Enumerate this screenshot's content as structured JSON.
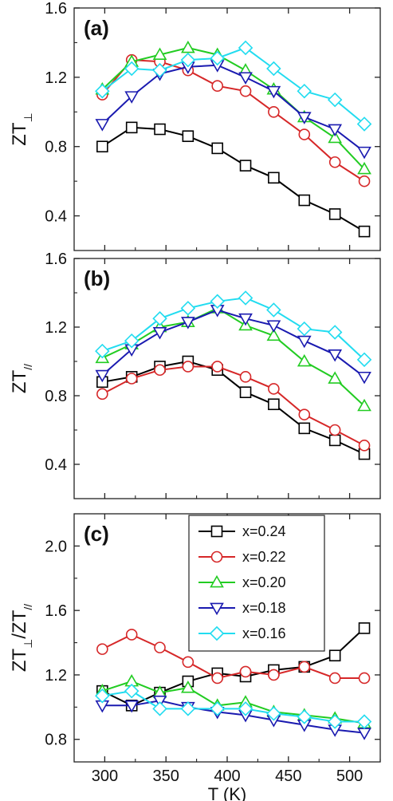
{
  "chart_data": [
    {
      "type": "line",
      "panel_label": "(a)",
      "ylabel": "ZT",
      "ylabel_sub": "⊥",
      "ylim": [
        0.2,
        1.6
      ],
      "yticks": [
        0.4,
        0.8,
        1.2,
        1.6
      ],
      "xlim": [
        275,
        525
      ],
      "xticks": [
        300,
        350,
        400,
        450,
        500
      ],
      "grid": false,
      "series": [
        {
          "name": "x=0.24",
          "color": "#000000",
          "marker": "square",
          "points": [
            [
              298,
              0.8
            ],
            [
              322,
              0.91
            ],
            [
              345,
              0.9
            ],
            [
              368,
              0.86
            ],
            [
              392,
              0.79
            ],
            [
              415,
              0.69
            ],
            [
              438,
              0.62
            ],
            [
              463,
              0.49
            ],
            [
              488,
              0.41
            ],
            [
              512,
              0.31
            ]
          ]
        },
        {
          "name": "x=0.22",
          "color": "#d62728",
          "marker": "circle",
          "points": [
            [
              298,
              1.1
            ],
            [
              322,
              1.3
            ],
            [
              345,
              1.29
            ],
            [
              368,
              1.24
            ],
            [
              392,
              1.15
            ],
            [
              415,
              1.12
            ],
            [
              438,
              1.0
            ],
            [
              463,
              0.87
            ],
            [
              488,
              0.71
            ],
            [
              512,
              0.6
            ]
          ]
        },
        {
          "name": "x=0.20",
          "color": "#22cc22",
          "marker": "triangle-up",
          "points": [
            [
              298,
              1.13
            ],
            [
              322,
              1.29
            ],
            [
              345,
              1.33
            ],
            [
              368,
              1.37
            ],
            [
              392,
              1.33
            ],
            [
              415,
              1.24
            ],
            [
              438,
              1.13
            ],
            [
              463,
              0.97
            ],
            [
              488,
              0.85
            ],
            [
              512,
              0.67
            ]
          ]
        },
        {
          "name": "x=0.18",
          "color": "#1a1ab0",
          "marker": "triangle-down",
          "points": [
            [
              298,
              0.93
            ],
            [
              322,
              1.09
            ],
            [
              345,
              1.22
            ],
            [
              368,
              1.26
            ],
            [
              392,
              1.27
            ],
            [
              415,
              1.2
            ],
            [
              438,
              1.12
            ],
            [
              463,
              0.97
            ],
            [
              488,
              0.9
            ],
            [
              512,
              0.77
            ]
          ]
        },
        {
          "name": "x=0.16",
          "color": "#22dcf0",
          "marker": "diamond",
          "points": [
            [
              298,
              1.12
            ],
            [
              322,
              1.25
            ],
            [
              345,
              1.24
            ],
            [
              368,
              1.3
            ],
            [
              392,
              1.31
            ],
            [
              415,
              1.37
            ],
            [
              438,
              1.25
            ],
            [
              463,
              1.12
            ],
            [
              488,
              1.07
            ],
            [
              512,
              0.93
            ]
          ]
        }
      ]
    },
    {
      "type": "line",
      "panel_label": "(b)",
      "ylabel": "ZT",
      "ylabel_sub": "//",
      "ylim": [
        0.2,
        1.6
      ],
      "yticks": [
        0.4,
        0.8,
        1.2,
        1.6
      ],
      "xlim": [
        275,
        525
      ],
      "xticks": [
        300,
        350,
        400,
        450,
        500
      ],
      "grid": false,
      "series": [
        {
          "name": "x=0.24",
          "color": "#000000",
          "marker": "square",
          "points": [
            [
              298,
              0.88
            ],
            [
              322,
              0.91
            ],
            [
              345,
              0.97
            ],
            [
              368,
              1.0
            ],
            [
              392,
              0.95
            ],
            [
              415,
              0.82
            ],
            [
              438,
              0.75
            ],
            [
              463,
              0.61
            ],
            [
              488,
              0.54
            ],
            [
              512,
              0.46
            ]
          ]
        },
        {
          "name": "x=0.22",
          "color": "#d62728",
          "marker": "circle",
          "points": [
            [
              298,
              0.81
            ],
            [
              322,
              0.9
            ],
            [
              345,
              0.95
            ],
            [
              368,
              0.97
            ],
            [
              392,
              0.97
            ],
            [
              415,
              0.91
            ],
            [
              438,
              0.84
            ],
            [
              463,
              0.69
            ],
            [
              488,
              0.6
            ],
            [
              512,
              0.51
            ]
          ]
        },
        {
          "name": "x=0.20",
          "color": "#22cc22",
          "marker": "triangle-up",
          "points": [
            [
              298,
              1.02
            ],
            [
              322,
              1.1
            ],
            [
              345,
              1.2
            ],
            [
              368,
              1.23
            ],
            [
              392,
              1.31
            ],
            [
              415,
              1.21
            ],
            [
              438,
              1.15
            ],
            [
              463,
              1.0
            ],
            [
              488,
              0.9
            ],
            [
              512,
              0.74
            ]
          ]
        },
        {
          "name": "x=0.18",
          "color": "#1a1ab0",
          "marker": "triangle-down",
          "points": [
            [
              298,
              0.92
            ],
            [
              322,
              1.07
            ],
            [
              345,
              1.17
            ],
            [
              368,
              1.23
            ],
            [
              392,
              1.3
            ],
            [
              415,
              1.25
            ],
            [
              438,
              1.21
            ],
            [
              463,
              1.12
            ],
            [
              488,
              1.04
            ],
            [
              512,
              0.91
            ]
          ]
        },
        {
          "name": "x=0.16",
          "color": "#22dcf0",
          "marker": "diamond",
          "points": [
            [
              298,
              1.06
            ],
            [
              322,
              1.12
            ],
            [
              345,
              1.25
            ],
            [
              368,
              1.31
            ],
            [
              392,
              1.35
            ],
            [
              415,
              1.37
            ],
            [
              438,
              1.3
            ],
            [
              463,
              1.19
            ],
            [
              488,
              1.17
            ],
            [
              512,
              1.01
            ]
          ]
        }
      ]
    },
    {
      "type": "line",
      "panel_label": "(c)",
      "ylabel": "ZT",
      "ylabel_sub": "⊥",
      "ylabel_part2": "/ZT",
      "ylabel_sub2": "//",
      "xlabel": "T (K)",
      "ylim": [
        0.66,
        2.2
      ],
      "yticks": [
        0.8,
        1.2,
        1.6,
        2.0
      ],
      "xlim": [
        275,
        525
      ],
      "xticks": [
        300,
        350,
        400,
        450,
        500
      ],
      "grid": false,
      "legend_position": "top-right",
      "series": [
        {
          "name": "x=0.24",
          "color": "#000000",
          "marker": "square",
          "points": [
            [
              298,
              1.1
            ],
            [
              322,
              1.01
            ],
            [
              345,
              1.09
            ],
            [
              368,
              1.16
            ],
            [
              392,
              1.21
            ],
            [
              415,
              1.19
            ],
            [
              438,
              1.23
            ],
            [
              463,
              1.25
            ],
            [
              488,
              1.32
            ],
            [
              512,
              1.49
            ]
          ]
        },
        {
          "name": "x=0.22",
          "color": "#d62728",
          "marker": "circle",
          "points": [
            [
              298,
              1.36
            ],
            [
              322,
              1.45
            ],
            [
              345,
              1.37
            ],
            [
              368,
              1.28
            ],
            [
              392,
              1.18
            ],
            [
              415,
              1.22
            ],
            [
              438,
              1.2
            ],
            [
              463,
              1.25
            ],
            [
              488,
              1.18
            ],
            [
              512,
              1.18
            ]
          ]
        },
        {
          "name": "x=0.20",
          "color": "#22cc22",
          "marker": "triangle-up",
          "points": [
            [
              298,
              1.1
            ],
            [
              322,
              1.16
            ],
            [
              345,
              1.09
            ],
            [
              368,
              1.12
            ],
            [
              392,
              1.01
            ],
            [
              415,
              1.03
            ],
            [
              438,
              0.97
            ],
            [
              463,
              0.95
            ],
            [
              488,
              0.93
            ],
            [
              512,
              0.9
            ]
          ]
        },
        {
          "name": "x=0.18",
          "color": "#1a1ab0",
          "marker": "triangle-down",
          "points": [
            [
              298,
              1.01
            ],
            [
              322,
              1.01
            ],
            [
              345,
              1.04
            ],
            [
              368,
              1.0
            ],
            [
              392,
              0.97
            ],
            [
              415,
              0.95
            ],
            [
              438,
              0.92
            ],
            [
              463,
              0.89
            ],
            [
              488,
              0.86
            ],
            [
              512,
              0.84
            ]
          ]
        },
        {
          "name": "x=0.16",
          "color": "#22dcf0",
          "marker": "diamond",
          "points": [
            [
              298,
              1.07
            ],
            [
              322,
              1.1
            ],
            [
              345,
              0.99
            ],
            [
              368,
              0.99
            ],
            [
              392,
              0.99
            ],
            [
              415,
              0.99
            ],
            [
              438,
              0.96
            ],
            [
              463,
              0.94
            ],
            [
              488,
              0.91
            ],
            [
              512,
              0.91
            ]
          ]
        }
      ]
    }
  ]
}
